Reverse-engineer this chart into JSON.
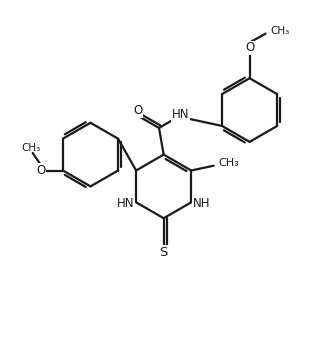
{
  "bg_color": "#ffffff",
  "line_color": "#1a1a1a",
  "line_width": 1.6,
  "font_size": 8.5,
  "fig_width": 3.21,
  "fig_height": 3.41,
  "dpi": 100,
  "xlim": [
    0,
    10
  ],
  "ylim": [
    0,
    10.6
  ]
}
